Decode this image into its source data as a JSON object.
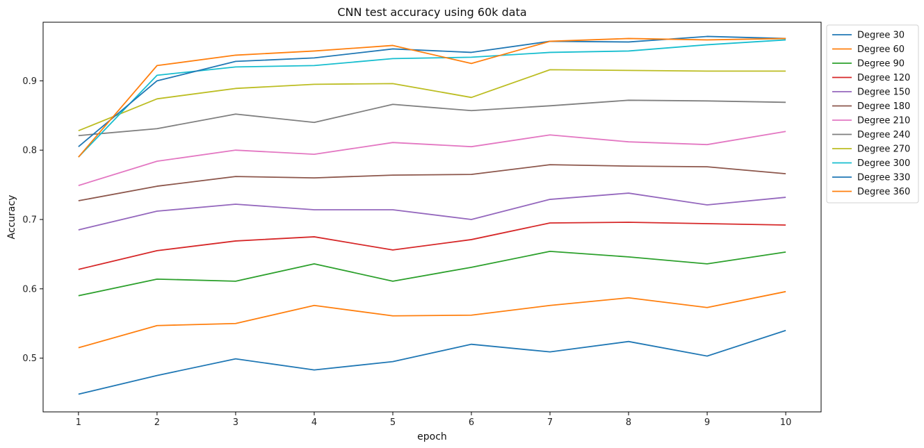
{
  "chart_data": {
    "type": "line",
    "title": "CNN test accuracy using 60k data",
    "xlabel": "epoch",
    "ylabel": "Accuracy",
    "x": [
      1,
      2,
      3,
      4,
      5,
      6,
      7,
      8,
      9,
      10
    ],
    "xlim": [
      0.55,
      10.45
    ],
    "ylim": [
      0.4225,
      0.9845
    ],
    "yticks": [
      0.5,
      0.6,
      0.7,
      0.8,
      0.9
    ],
    "ytick_labels": [
      "0.5",
      "0.6",
      "0.7",
      "0.8",
      "0.9"
    ],
    "grid": false,
    "legend_position": "outside-top-right",
    "series": [
      {
        "name": "Degree 30",
        "color": "#1f77b4",
        "values": [
          0.448,
          0.475,
          0.499,
          0.483,
          0.495,
          0.52,
          0.509,
          0.524,
          0.503,
          0.54
        ]
      },
      {
        "name": "Degree 60",
        "color": "#ff7f0e",
        "values": [
          0.515,
          0.547,
          0.55,
          0.576,
          0.561,
          0.562,
          0.576,
          0.587,
          0.573,
          0.596
        ]
      },
      {
        "name": "Degree 90",
        "color": "#2ca02c",
        "values": [
          0.59,
          0.614,
          0.611,
          0.636,
          0.611,
          0.631,
          0.654,
          0.646,
          0.636,
          0.653
        ]
      },
      {
        "name": "Degree 120",
        "color": "#d62728",
        "values": [
          0.628,
          0.655,
          0.669,
          0.675,
          0.656,
          0.671,
          0.695,
          0.696,
          0.694,
          0.692
        ]
      },
      {
        "name": "Degree 150",
        "color": "#9467bd",
        "values": [
          0.685,
          0.712,
          0.722,
          0.714,
          0.714,
          0.7,
          0.729,
          0.738,
          0.721,
          0.732
        ]
      },
      {
        "name": "Degree 180",
        "color": "#8c564b",
        "values": [
          0.727,
          0.748,
          0.762,
          0.76,
          0.764,
          0.765,
          0.779,
          0.777,
          0.776,
          0.766
        ]
      },
      {
        "name": "Degree 210",
        "color": "#e377c2",
        "values": [
          0.749,
          0.784,
          0.8,
          0.794,
          0.811,
          0.805,
          0.822,
          0.812,
          0.808,
          0.827
        ]
      },
      {
        "name": "Degree 240",
        "color": "#7f7f7f",
        "values": [
          0.821,
          0.831,
          0.852,
          0.84,
          0.866,
          0.857,
          0.864,
          0.872,
          0.871,
          0.869
        ]
      },
      {
        "name": "Degree 270",
        "color": "#bcbd22",
        "values": [
          0.828,
          0.874,
          0.889,
          0.895,
          0.896,
          0.876,
          0.916,
          0.915,
          0.914,
          0.914
        ]
      },
      {
        "name": "Degree 300",
        "color": "#17becf",
        "values": [
          0.79,
          0.908,
          0.92,
          0.922,
          0.932,
          0.934,
          0.941,
          0.943,
          0.952,
          0.959
        ]
      },
      {
        "name": "Degree 330",
        "color": "#1f77b4",
        "values": [
          0.805,
          0.9,
          0.928,
          0.933,
          0.946,
          0.941,
          0.957,
          0.956,
          0.964,
          0.961
        ]
      },
      {
        "name": "Degree 360",
        "color": "#ff7f0e",
        "values": [
          0.79,
          0.922,
          0.937,
          0.943,
          0.951,
          0.925,
          0.957,
          0.961,
          0.959,
          0.961
        ]
      }
    ]
  }
}
